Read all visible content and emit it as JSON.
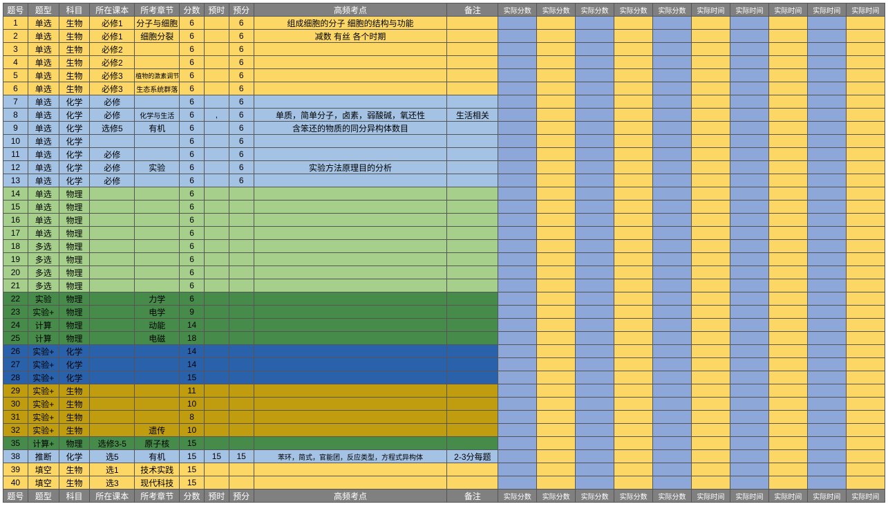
{
  "colors": {
    "header_bg": "#808080",
    "header_fg": "#ffffff",
    "yellow": "#fcd766",
    "lightblue": "#a4c2e4",
    "lightgreen": "#a6cf8b",
    "darkgreen": "#468b4a",
    "blue": "#2961ab",
    "olive": "#c09c0f",
    "blue2": "#8da8d8",
    "yellow2": "#fcd766",
    "border": "#555555"
  },
  "columns": {
    "widths": [
      32,
      40,
      40,
      58,
      58,
      32,
      32,
      32,
      250,
      66,
      50,
      50,
      50,
      50,
      50,
      50,
      50,
      50,
      50,
      50
    ],
    "labels": [
      "题号",
      "题型",
      "科目",
      "所在课本",
      "所考章节",
      "分数",
      "预时",
      "预分",
      "高频考点",
      "备注",
      "实际分数",
      "实际分数",
      "实际分数",
      "实际分数",
      "实际分数",
      "实际时间",
      "实际时间",
      "实际时间",
      "实际时间",
      "实际时间"
    ]
  },
  "right_alt_colors": [
    "#8da8d8",
    "#fcd766",
    "#8da8d8",
    "#fcd766",
    "#8da8d8",
    "#fcd766",
    "#8da8d8",
    "#fcd766",
    "#8da8d8",
    "#fcd766"
  ],
  "rows": [
    {
      "c": "yellow",
      "d": [
        "1",
        "单选",
        "生物",
        "必修1",
        "分子与细胞",
        "6",
        "",
        "6",
        "组成细胞的分子 细胞的结构与功能",
        ""
      ]
    },
    {
      "c": "yellow",
      "d": [
        "2",
        "单选",
        "生物",
        "必修1",
        "细胞分裂",
        "6",
        "",
        "6",
        "减数 有丝 各个时期",
        ""
      ]
    },
    {
      "c": "yellow",
      "d": [
        "3",
        "单选",
        "生物",
        "必修2",
        "",
        "6",
        "",
        "6",
        "",
        ""
      ]
    },
    {
      "c": "yellow",
      "d": [
        "4",
        "单选",
        "生物",
        "必修2",
        "",
        "6",
        "",
        "6",
        "",
        ""
      ]
    },
    {
      "c": "yellow",
      "d": [
        "5",
        "单选",
        "生物",
        "必修3",
        "植物的激素调节",
        "6",
        "",
        "6",
        "",
        ""
      ],
      "tiny": [
        4
      ]
    },
    {
      "c": "yellow",
      "d": [
        "6",
        "单选",
        "生物",
        "必修3",
        "生态系统群落",
        "6",
        "",
        "6",
        "",
        ""
      ],
      "small": [
        4
      ]
    },
    {
      "c": "lightblue",
      "d": [
        "7",
        "单选",
        "化学",
        "必修",
        "",
        "6",
        "",
        "6",
        "",
        ""
      ]
    },
    {
      "c": "lightblue",
      "d": [
        "8",
        "单选",
        "化学",
        "必修",
        "化学与生活",
        "6",
        ",",
        "6",
        "单质，简单分子，卤素，弱酸碱，氧还性",
        "生活相关"
      ],
      "small": [
        4
      ]
    },
    {
      "c": "lightblue",
      "d": [
        "9",
        "单选",
        "化学",
        "选修5",
        "有机",
        "6",
        "",
        "6",
        "含笨还的物质的同分异构体数目",
        ""
      ]
    },
    {
      "c": "lightblue",
      "d": [
        "10",
        "单选",
        "化学",
        "",
        "",
        "6",
        "",
        "6",
        "",
        ""
      ]
    },
    {
      "c": "lightblue",
      "d": [
        "11",
        "单选",
        "化学",
        "必修",
        "",
        "6",
        "",
        "6",
        "",
        ""
      ]
    },
    {
      "c": "lightblue",
      "d": [
        "12",
        "单选",
        "化学",
        "必修",
        "实验",
        "6",
        "",
        "6",
        "实验方法原理目的分析",
        ""
      ]
    },
    {
      "c": "lightblue",
      "d": [
        "13",
        "单选",
        "化学",
        "必修",
        "",
        "6",
        "",
        "6",
        "",
        ""
      ]
    },
    {
      "c": "lightgreen",
      "d": [
        "14",
        "单选",
        "物理",
        "",
        "",
        "6",
        "",
        "",
        "",
        ""
      ]
    },
    {
      "c": "lightgreen",
      "d": [
        "15",
        "单选",
        "物理",
        "",
        "",
        "6",
        "",
        "",
        "",
        ""
      ]
    },
    {
      "c": "lightgreen",
      "d": [
        "16",
        "单选",
        "物理",
        "",
        "",
        "6",
        "",
        "",
        "",
        ""
      ]
    },
    {
      "c": "lightgreen",
      "d": [
        "17",
        "单选",
        "物理",
        "",
        "",
        "6",
        "",
        "",
        "",
        ""
      ]
    },
    {
      "c": "lightgreen",
      "d": [
        "18",
        "多选",
        "物理",
        "",
        "",
        "6",
        "",
        "",
        "",
        ""
      ]
    },
    {
      "c": "lightgreen",
      "d": [
        "19",
        "多选",
        "物理",
        "",
        "",
        "6",
        "",
        "",
        "",
        ""
      ]
    },
    {
      "c": "lightgreen",
      "d": [
        "20",
        "多选",
        "物理",
        "",
        "",
        "6",
        "",
        "",
        "",
        ""
      ]
    },
    {
      "c": "lightgreen",
      "d": [
        "21",
        "多选",
        "物理",
        "",
        "",
        "6",
        "",
        "",
        "",
        ""
      ]
    },
    {
      "c": "darkgreen",
      "d": [
        "22",
        "实验",
        "物理",
        "",
        "力学",
        "6",
        "",
        "",
        "",
        ""
      ]
    },
    {
      "c": "darkgreen",
      "d": [
        "23",
        "实验+",
        "物理",
        "",
        "电学",
        "9",
        "",
        "",
        "",
        ""
      ]
    },
    {
      "c": "darkgreen",
      "d": [
        "24",
        "计算",
        "物理",
        "",
        "动能",
        "14",
        "",
        "",
        "",
        ""
      ]
    },
    {
      "c": "darkgreen",
      "d": [
        "25",
        "计算",
        "物理",
        "",
        "电磁",
        "18",
        "",
        "",
        "",
        ""
      ]
    },
    {
      "c": "blue",
      "d": [
        "26",
        "实验+",
        "化学",
        "",
        "",
        "14",
        "",
        "",
        "",
        ""
      ]
    },
    {
      "c": "blue",
      "d": [
        "27",
        "实验+",
        "化学",
        "",
        "",
        "14",
        "",
        "",
        "",
        ""
      ]
    },
    {
      "c": "blue",
      "d": [
        "28",
        "实验+",
        "化学",
        "",
        "",
        "15",
        "",
        "",
        "",
        ""
      ]
    },
    {
      "c": "olive",
      "d": [
        "29",
        "实验+",
        "生物",
        "",
        "",
        "11",
        "",
        "",
        "",
        ""
      ]
    },
    {
      "c": "olive",
      "d": [
        "30",
        "实验+",
        "生物",
        "",
        "",
        "10",
        "",
        "",
        "",
        ""
      ]
    },
    {
      "c": "olive",
      "d": [
        "31",
        "实验+",
        "生物",
        "",
        "",
        "8",
        "",
        "",
        "",
        ""
      ]
    },
    {
      "c": "olive",
      "d": [
        "32",
        "实验+",
        "生物",
        "",
        "遗传",
        "10",
        "",
        "",
        "",
        ""
      ]
    },
    {
      "c": "darkgreen",
      "d": [
        "35",
        "计算+",
        "物理",
        "选修3-5",
        "原子核",
        "15",
        "",
        "",
        "",
        ""
      ]
    },
    {
      "c": "lightblue",
      "d": [
        "38",
        "推断",
        "化学",
        "选5",
        "有机",
        "15",
        "15",
        "15",
        "苯环，简式，官能团，反应类型，方程式异构体",
        "2-3分每题"
      ],
      "small": [
        8
      ]
    },
    {
      "c": "yellow",
      "d": [
        "39",
        "填空",
        "生物",
        "选1",
        "技术实践",
        "15",
        "",
        "",
        "",
        ""
      ]
    },
    {
      "c": "yellow",
      "d": [
        "40",
        "填空",
        "生物",
        "选3",
        "现代科技",
        "15",
        "",
        "",
        "",
        ""
      ]
    }
  ]
}
